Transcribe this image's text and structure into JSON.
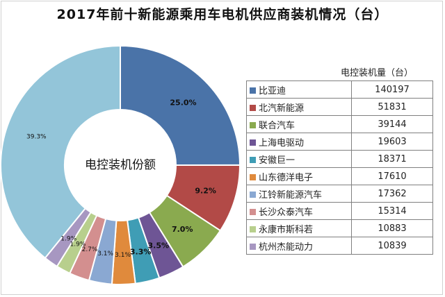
{
  "title": "2017年前十新能源乘用车电机供应商装机情况（台）",
  "center_label": "电控装机份额",
  "legend_header": "电控装机量（台）",
  "chart_data": {
    "type": "pie",
    "title": "2017年前十新能源乘用车电机供应商装机情况（台）",
    "donut": true,
    "center_label": "电控装机份额",
    "value_header": "电控装机量（台）",
    "categories": [
      "比亚迪",
      "北汽新能源",
      "联合汽车",
      "上海电驱动",
      "安徽巨一",
      "山东德洋电子",
      "江铃新能源汽车",
      "长沙众泰汽车",
      "永康市斯科若",
      "杭州杰能动力",
      ""
    ],
    "values": [
      140197,
      51831,
      39144,
      19603,
      18371,
      17610,
      17362,
      15314,
      10883,
      10839,
      219796
    ],
    "percent_labels": [
      "25.0%",
      "9.2%",
      "7.0%",
      "3.5%",
      "3.3%",
      "3.1%",
      "3.1%",
      "2.7%",
      "1.9%",
      "1.9%",
      "39.3%"
    ],
    "colors": [
      "#4a73a8",
      "#b24a47",
      "#8aaa4f",
      "#6e5595",
      "#3f9db5",
      "#e08a3c",
      "#8aa8d2",
      "#d38f8f",
      "#b8cf8d",
      "#a797c1",
      "#93c5d9"
    ],
    "legend": "right"
  }
}
